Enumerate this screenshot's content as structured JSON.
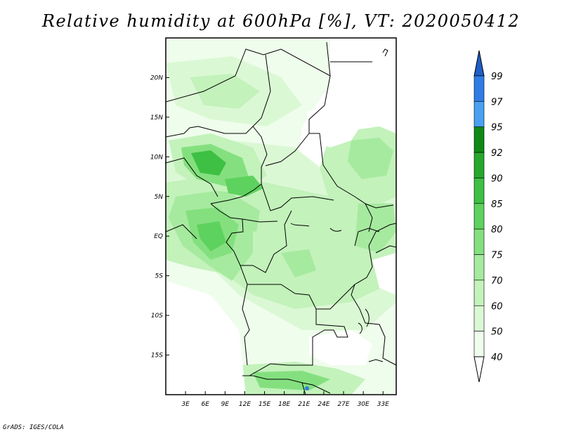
{
  "title": "Relative humidity at 600hPa [%], VT: 2020050412",
  "credit": "GrADS: IGES/COLA",
  "map": {
    "lon_ticks": [
      "3E",
      "6E",
      "9E",
      "12E",
      "15E",
      "18E",
      "21E",
      "24E",
      "27E",
      "30E",
      "33E"
    ],
    "lat_ticks": [
      "20N",
      "15N",
      "10N",
      "5N",
      "EQ",
      "5S",
      "10S",
      "15S"
    ],
    "lon_range": [
      0,
      35
    ],
    "lat_range": [
      -20,
      25
    ]
  },
  "colorbar": {
    "labels": [
      "99",
      "97",
      "95",
      "92",
      "90",
      "85",
      "80",
      "75",
      "70",
      "60",
      "50",
      "40"
    ],
    "colors": [
      "#1e5fc8",
      "#2f7ce6",
      "#4aa0f2",
      "#0e8a14",
      "#26a82c",
      "#3dc043",
      "#5ed25e",
      "#84e07f",
      "#a6ea9f",
      "#c3f2bb",
      "#dbf8d5",
      "#effdec",
      "#ffffff"
    ]
  }
}
